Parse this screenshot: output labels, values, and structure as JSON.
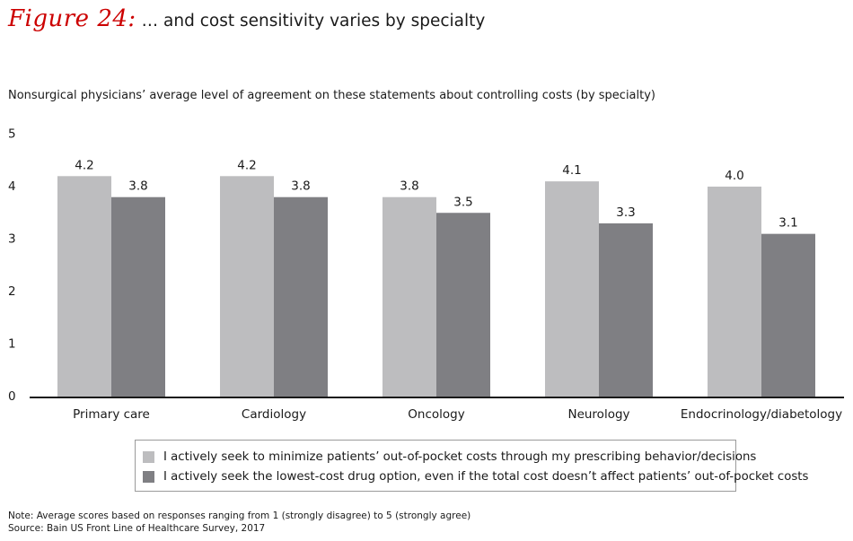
{
  "figure": {
    "label": "Figure 24:",
    "title": "… and cost sensitivity varies by specialty"
  },
  "subtitle": "Nonsurgical physicians’ average level of agreement on these statements about controlling costs (by specialty)",
  "colors": {
    "series1": "#bdbdbf",
    "series2": "#7f7f83",
    "axis": "#1a1a1a",
    "title_accent": "#cc0000"
  },
  "chart_data": {
    "type": "bar",
    "title": "… and cost sensitivity varies by specialty",
    "xlabel": "",
    "ylabel": "",
    "ylim": [
      0,
      5
    ],
    "yticks": [
      0,
      1,
      2,
      3,
      4,
      5
    ],
    "grid": false,
    "categories": [
      "Primary care",
      "Cardiology",
      "Oncology",
      "Neurology",
      "Endocrinology/diabetology"
    ],
    "series": [
      {
        "name": "I actively seek to minimize patients’ out-of-pocket costs through my prescribing behavior/decisions",
        "values": [
          4.2,
          4.2,
          3.8,
          4.1,
          4.0
        ],
        "labels": [
          "4.2",
          "4.2",
          "3.8",
          "4.1",
          "4.0"
        ]
      },
      {
        "name": "I actively seek the lowest-cost drug option, even if the total cost doesn’t affect patients’ out-of-pocket costs",
        "values": [
          3.8,
          3.8,
          3.5,
          3.3,
          3.1
        ],
        "labels": [
          "3.8",
          "3.8",
          "3.5",
          "3.3",
          "3.1"
        ]
      }
    ],
    "legend_position": "bottom"
  },
  "notes": {
    "note": "Note: Average scores based on responses ranging from 1 (strongly disagree) to 5 (strongly agree)",
    "source": "Source: Bain US Front Line of Healthcare Survey, 2017"
  }
}
